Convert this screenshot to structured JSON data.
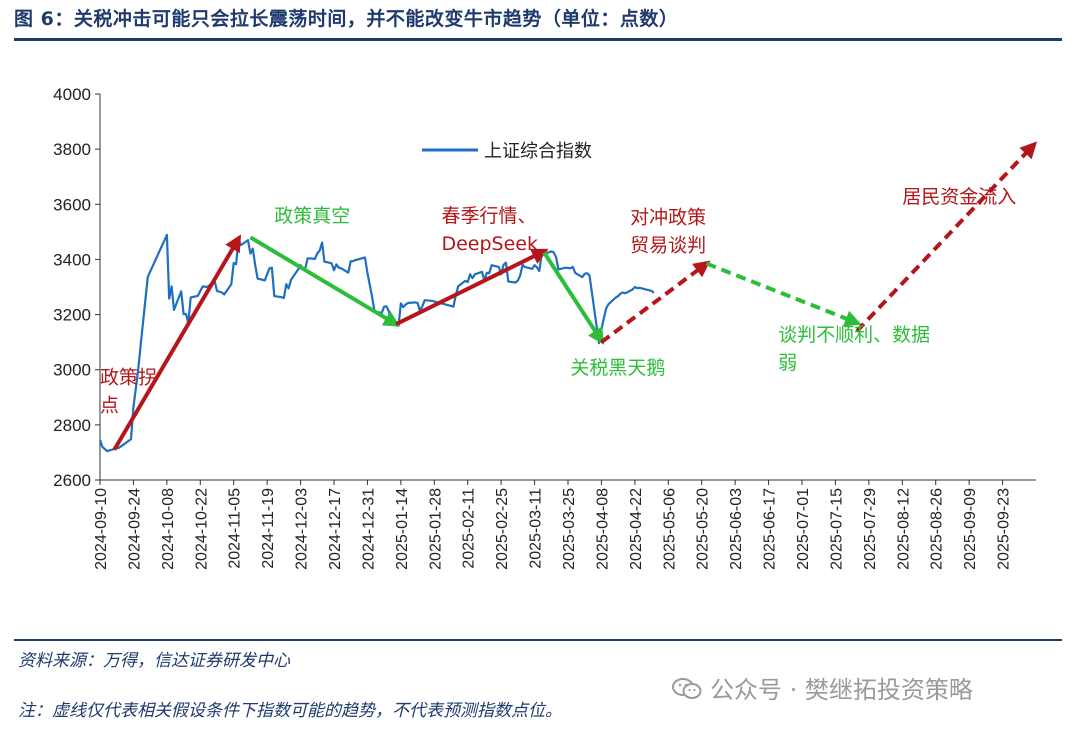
{
  "header": {
    "title": "图 6：关税冲击可能只会拉长震荡时间，并不能改变牛市趋势（单位：点数）"
  },
  "footer": {
    "source": "资料来源：万得，信达证券研发中心",
    "note": "注：虚线仅代表相关假设条件下指数可能的趋势，不代表预测指数点位。",
    "watermark": "公众号 · 樊继拓投资策略",
    "watermark_icon": "wechat-icon"
  },
  "chart_data": {
    "type": "line",
    "legend": {
      "label": "上证综合指数",
      "placement": "top-center"
    },
    "ylim": [
      2600,
      4000
    ],
    "yticks": [
      2600,
      2800,
      3000,
      3200,
      3400,
      3600,
      3800,
      4000
    ],
    "xlim": [
      "2024-09-10",
      "2025-10-07"
    ],
    "xticks": [
      "2024-09-10",
      "2024-09-24",
      "2024-10-08",
      "2024-10-22",
      "2024-11-05",
      "2024-11-19",
      "2024-12-03",
      "2024-12-17",
      "2024-12-31",
      "2025-01-14",
      "2025-01-28",
      "2025-02-11",
      "2025-02-25",
      "2025-03-11",
      "2025-03-25",
      "2025-04-08",
      "2025-04-22",
      "2025-05-06",
      "2025-05-20",
      "2025-06-03",
      "2025-06-17",
      "2025-07-01",
      "2025-07-15",
      "2025-07-29",
      "2025-08-12",
      "2025-08-26",
      "2025-09-09",
      "2025-09-23"
    ],
    "series": [
      {
        "name": "上证综合指数",
        "color": "#1f6fc0",
        "points": [
          [
            "2024-09-10",
            2745
          ],
          [
            "2024-09-11",
            2720
          ],
          [
            "2024-09-13",
            2705
          ],
          [
            "2024-09-18",
            2717
          ],
          [
            "2024-09-23",
            2748
          ],
          [
            "2024-09-24",
            2863
          ],
          [
            "2024-09-26",
            3000
          ],
          [
            "2024-09-27",
            3087
          ],
          [
            "2024-09-30",
            3337
          ],
          [
            "2024-10-08",
            3489
          ],
          [
            "2024-10-09",
            3258
          ],
          [
            "2024-10-10",
            3302
          ],
          [
            "2024-10-11",
            3217
          ],
          [
            "2024-10-14",
            3284
          ],
          [
            "2024-10-15",
            3202
          ],
          [
            "2024-10-16",
            3202
          ],
          [
            "2024-10-17",
            3169
          ],
          [
            "2024-10-18",
            3262
          ],
          [
            "2024-10-21",
            3268
          ],
          [
            "2024-10-23",
            3302
          ],
          [
            "2024-10-25",
            3300
          ],
          [
            "2024-10-28",
            3322
          ],
          [
            "2024-10-29",
            3286
          ],
          [
            "2024-10-31",
            3280
          ],
          [
            "2024-11-01",
            3273
          ],
          [
            "2024-11-04",
            3310
          ],
          [
            "2024-11-05",
            3387
          ],
          [
            "2024-11-06",
            3383
          ],
          [
            "2024-11-07",
            3471
          ],
          [
            "2024-11-08",
            3452
          ],
          [
            "2024-11-11",
            3470
          ],
          [
            "2024-11-12",
            3421
          ],
          [
            "2024-11-13",
            3439
          ],
          [
            "2024-11-14",
            3379
          ],
          [
            "2024-11-15",
            3331
          ],
          [
            "2024-11-18",
            3324
          ],
          [
            "2024-11-19",
            3346
          ],
          [
            "2024-11-20",
            3368
          ],
          [
            "2024-11-21",
            3370
          ],
          [
            "2024-11-22",
            3267
          ],
          [
            "2024-11-25",
            3263
          ],
          [
            "2024-11-26",
            3260
          ],
          [
            "2024-11-27",
            3310
          ],
          [
            "2024-11-28",
            3295
          ],
          [
            "2024-11-29",
            3326
          ],
          [
            "2024-12-02",
            3364
          ],
          [
            "2024-12-03",
            3379
          ],
          [
            "2024-12-04",
            3368
          ],
          [
            "2024-12-05",
            3368
          ],
          [
            "2024-12-06",
            3404
          ],
          [
            "2024-12-09",
            3402
          ],
          [
            "2024-12-10",
            3422
          ],
          [
            "2024-12-11",
            3432
          ],
          [
            "2024-12-12",
            3461
          ],
          [
            "2024-12-13",
            3392
          ],
          [
            "2024-12-16",
            3386
          ],
          [
            "2024-12-17",
            3361
          ],
          [
            "2024-12-18",
            3382
          ],
          [
            "2024-12-19",
            3370
          ],
          [
            "2024-12-20",
            3368
          ],
          [
            "2024-12-23",
            3352
          ],
          [
            "2024-12-24",
            3393
          ],
          [
            "2024-12-25",
            3394
          ],
          [
            "2024-12-26",
            3398
          ],
          [
            "2024-12-27",
            3400
          ],
          [
            "2024-12-30",
            3407
          ],
          [
            "2024-12-31",
            3352
          ],
          [
            "2025-01-02",
            3262
          ],
          [
            "2025-01-03",
            3211
          ],
          [
            "2025-01-06",
            3206
          ],
          [
            "2025-01-07",
            3229
          ],
          [
            "2025-01-08",
            3230
          ],
          [
            "2025-01-09",
            3211
          ],
          [
            "2025-01-10",
            3168
          ],
          [
            "2025-01-13",
            3160
          ],
          [
            "2025-01-14",
            3241
          ],
          [
            "2025-01-15",
            3227
          ],
          [
            "2025-01-16",
            3236
          ],
          [
            "2025-01-17",
            3242
          ],
          [
            "2025-01-20",
            3244
          ],
          [
            "2025-01-21",
            3242
          ],
          [
            "2025-01-22",
            3213
          ],
          [
            "2025-01-23",
            3230
          ],
          [
            "2025-01-24",
            3252
          ],
          [
            "2025-01-27",
            3250
          ],
          [
            "2025-02-05",
            3229
          ],
          [
            "2025-02-06",
            3270
          ],
          [
            "2025-02-07",
            3303
          ],
          [
            "2025-02-10",
            3322
          ],
          [
            "2025-02-11",
            3318
          ],
          [
            "2025-02-12",
            3346
          ],
          [
            "2025-02-13",
            3332
          ],
          [
            "2025-02-14",
            3346
          ],
          [
            "2025-02-17",
            3355
          ],
          [
            "2025-02-18",
            3324
          ],
          [
            "2025-02-19",
            3351
          ],
          [
            "2025-02-20",
            3350
          ],
          [
            "2025-02-21",
            3379
          ],
          [
            "2025-02-24",
            3373
          ],
          [
            "2025-02-25",
            3346
          ],
          [
            "2025-02-26",
            3380
          ],
          [
            "2025-02-27",
            3388
          ],
          [
            "2025-02-28",
            3320
          ],
          [
            "2025-03-03",
            3316
          ],
          [
            "2025-03-04",
            3324
          ],
          [
            "2025-03-05",
            3342
          ],
          [
            "2025-03-06",
            3381
          ],
          [
            "2025-03-07",
            3372
          ],
          [
            "2025-03-10",
            3366
          ],
          [
            "2025-03-11",
            3379
          ],
          [
            "2025-03-12",
            3371
          ],
          [
            "2025-03-13",
            3358
          ],
          [
            "2025-03-14",
            3419
          ],
          [
            "2025-03-17",
            3426
          ],
          [
            "2025-03-18",
            3429
          ],
          [
            "2025-03-19",
            3426
          ],
          [
            "2025-03-20",
            3408
          ],
          [
            "2025-03-21",
            3364
          ],
          [
            "2025-03-24",
            3370
          ],
          [
            "2025-03-25",
            3369
          ],
          [
            "2025-03-26",
            3368
          ],
          [
            "2025-03-27",
            3373
          ],
          [
            "2025-03-28",
            3351
          ],
          [
            "2025-03-31",
            3336
          ],
          [
            "2025-04-01",
            3348
          ],
          [
            "2025-04-02",
            3350
          ],
          [
            "2025-04-03",
            3342
          ],
          [
            "2025-04-07",
            3096
          ],
          [
            "2025-04-08",
            3145
          ],
          [
            "2025-04-09",
            3186
          ],
          [
            "2025-04-10",
            3223
          ],
          [
            "2025-04-11",
            3238
          ],
          [
            "2025-04-14",
            3262
          ],
          [
            "2025-04-15",
            3267
          ],
          [
            "2025-04-16",
            3276
          ],
          [
            "2025-04-17",
            3280
          ],
          [
            "2025-04-18",
            3277
          ],
          [
            "2025-04-21",
            3291
          ],
          [
            "2025-04-22",
            3300
          ],
          [
            "2025-04-23",
            3296
          ],
          [
            "2025-04-24",
            3297
          ],
          [
            "2025-04-25",
            3295
          ],
          [
            "2025-04-28",
            3288
          ],
          [
            "2025-04-29",
            3286
          ],
          [
            "2025-04-30",
            3279
          ]
        ]
      }
    ],
    "scenario_arrows": [
      {
        "from": [
          "2024-09-16",
          2710
        ],
        "to": [
          "2024-11-07",
          3475
        ],
        "style": "solid",
        "color": "#b4161b"
      },
      {
        "from": [
          "2024-11-12",
          3480
        ],
        "to": [
          "2025-01-12",
          3165
        ],
        "style": "solid",
        "color": "#2ebd3a"
      },
      {
        "from": [
          "2025-01-12",
          3165
        ],
        "to": [
          "2025-03-15",
          3430
        ],
        "style": "solid",
        "color": "#b4161b"
      },
      {
        "from": [
          "2025-03-15",
          3425
        ],
        "to": [
          "2025-04-08",
          3105
        ],
        "style": "solid",
        "color": "#2ebd3a"
      },
      {
        "from": [
          "2025-04-08",
          3100
        ],
        "to": [
          "2025-05-22",
          3385
        ],
        "style": "dashed",
        "color": "#b4161b"
      },
      {
        "from": [
          "2025-05-22",
          3385
        ],
        "to": [
          "2025-07-24",
          3170
        ],
        "style": "dashed",
        "color": "#2ebd3a"
      },
      {
        "from": [
          "2025-07-24",
          3140
        ],
        "to": [
          "2025-10-06",
          3815
        ],
        "style": "dashed",
        "color": "#b4161b"
      }
    ],
    "annotations": [
      {
        "lines": [
          "政策拐",
          "点"
        ],
        "at": [
          "2024-09-10",
          2950
        ],
        "color": "#b4161b"
      },
      {
        "lines": [
          "政策真空"
        ],
        "at": [
          "2024-11-22",
          3535
        ],
        "color": "#2ebd3a"
      },
      {
        "lines": [
          "春季行情、",
          "DeepSeek"
        ],
        "at": [
          "2025-01-31",
          3535
        ],
        "color": "#b4161b"
      },
      {
        "lines": [
          "关税黑天鹅"
        ],
        "at": [
          "2025-03-26",
          2985
        ],
        "color": "#2ebd3a"
      },
      {
        "lines": [
          "对冲政策",
          "贸易谈判"
        ],
        "at": [
          "2025-04-20",
          3530
        ],
        "color": "#b4161b"
      },
      {
        "lines": [
          "谈判不顺利、数据",
          "弱"
        ],
        "at": [
          "2025-06-21",
          3105
        ],
        "color": "#2ebd3a"
      },
      {
        "lines": [
          "居民资金流入"
        ],
        "at": [
          "2025-08-12",
          3605
        ],
        "color": "#b4161b"
      }
    ]
  }
}
